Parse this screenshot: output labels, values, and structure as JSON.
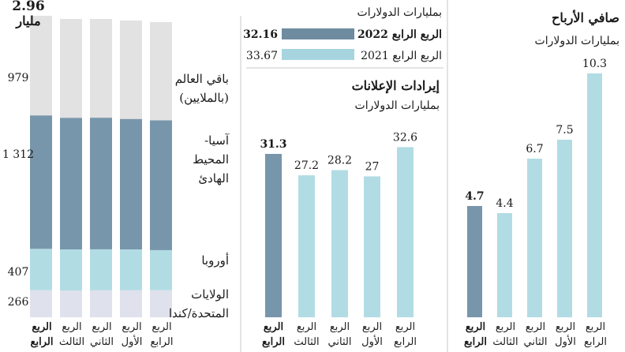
{
  "colors": {
    "dark": "#7896ab",
    "light": "#b2dce4",
    "grey": "#e2e2e2",
    "lavender": "#dfe1ed",
    "legend_dark": "#6e8ba0",
    "legend_light": "#a7d5df",
    "divider": "#c8c8c8"
  },
  "chart_data": [
    {
      "type": "bar",
      "stacked": true,
      "categories": [
        "الربع الرابع",
        "الربع الثالث",
        "الربع الثاني",
        "الربع الأول",
        "الربع الرابع"
      ],
      "top_label": "2.96",
      "top_label_unit": "مليار",
      "series": [
        {
          "name": "الولايات المتحدة/كندا",
          "value_label": "266",
          "values": [
            266,
            266,
            266,
            266,
            266
          ]
        },
        {
          "name": "أوروبا",
          "value_label": "407",
          "values": [
            407,
            407,
            405,
            403,
            394
          ]
        },
        {
          "name": "آسيا-المحيط الهادئ",
          "value_label": "1 312",
          "values": [
            1312,
            1305,
            1300,
            1286,
            1277
          ]
        },
        {
          "name": "باقي العالم (بالملايين)",
          "value_label": "979",
          "values": [
            979,
            980,
            975,
            970,
            965
          ]
        }
      ],
      "ylim": [
        0,
        3000
      ]
    },
    {
      "type": "bar",
      "title": "إيرادات الإعلانات",
      "subtitle": "بمليارات الدولارات",
      "categories": [
        "الربع الرابع",
        "الربع الثالث",
        "الربع الثاني",
        "الربع الأول",
        "الربع الرابع"
      ],
      "values": [
        31.3,
        27.2,
        28.2,
        27,
        32.6
      ],
      "value_labels": [
        "31.3",
        "27.2",
        "28.2",
        "27",
        "32.6"
      ],
      "ylim": [
        0,
        40
      ]
    },
    {
      "type": "bar",
      "title": "صافي الأرباح",
      "subtitle": "بمليارات الدولارات",
      "categories": [
        "الربع الرابع",
        "الربع الثالث",
        "الربع الثاني",
        "الربع الأول",
        "الربع الرابع"
      ],
      "values": [
        4.7,
        4.4,
        6.7,
        7.5,
        10.3
      ],
      "value_labels": [
        "4.7",
        "4.4",
        "6.7",
        "7.5",
        "10.3"
      ],
      "ylim": [
        0,
        11.5
      ]
    }
  ],
  "legend": {
    "unit": "بمليارات الدولارات",
    "items": [
      {
        "label": "الربع الرابع 2022",
        "value": "32.16"
      },
      {
        "label": "الربع الرابع 2021",
        "value": "33.67"
      }
    ]
  }
}
